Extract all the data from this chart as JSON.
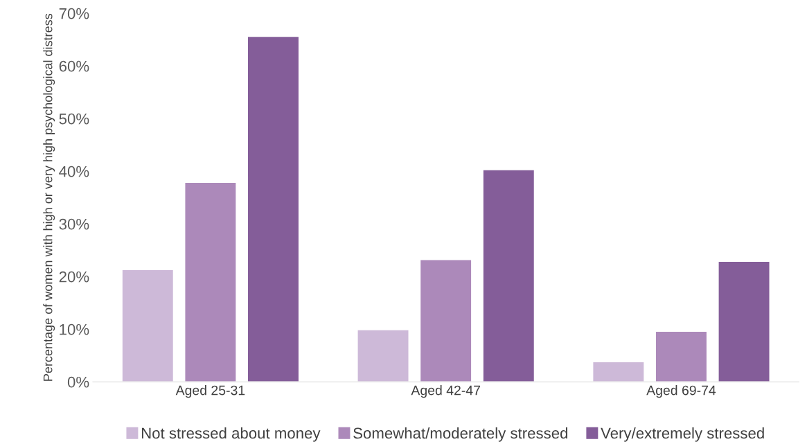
{
  "chart_data": {
    "type": "bar",
    "ylabel": "Percentage of women with high or very high psychological distress",
    "categories": [
      "Aged 25-31",
      "Aged 42-47",
      "Aged 69-74"
    ],
    "series": [
      {
        "name": "Not stressed about money",
        "color": "#cdb9d8",
        "values": [
          21.3,
          9.9,
          3.8
        ]
      },
      {
        "name": "Somewhat/moderately stressed",
        "color": "#ac89ba",
        "values": [
          37.9,
          23.2,
          9.6
        ]
      },
      {
        "name": "Very/extremely stressed",
        "color": "#845d99",
        "values": [
          65.6,
          40.3,
          22.9
        ]
      }
    ],
    "ylim": [
      0,
      70
    ],
    "yticks": [
      {
        "value": 0,
        "label": "0%"
      },
      {
        "value": 10,
        "label": "10%"
      },
      {
        "value": 20,
        "label": "20%"
      },
      {
        "value": 30,
        "label": "30%"
      },
      {
        "value": 40,
        "label": "40%"
      },
      {
        "value": 50,
        "label": "50%"
      },
      {
        "value": 60,
        "label": "60%"
      },
      {
        "value": 70,
        "label": "70%"
      }
    ],
    "grid": false,
    "legend": "bottom"
  }
}
